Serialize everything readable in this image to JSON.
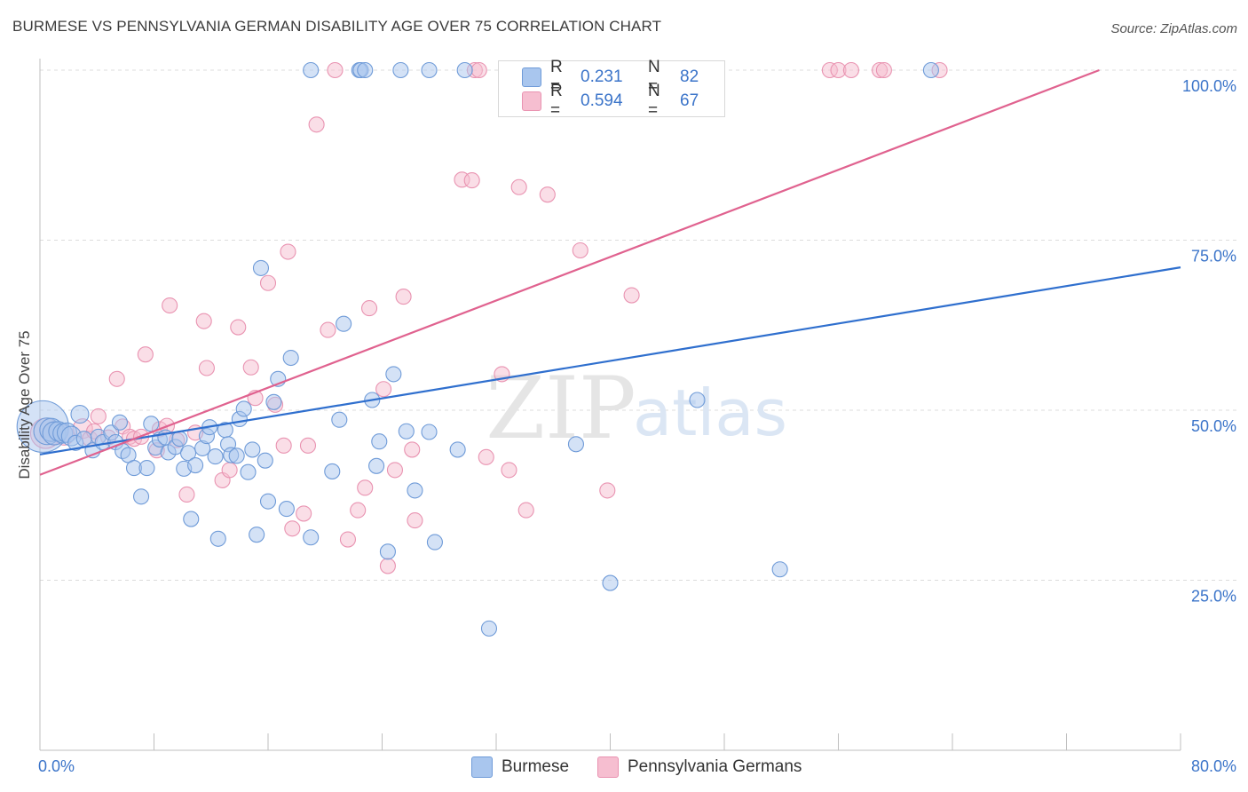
{
  "header": {
    "title": "BURMESE VS PENNSYLVANIA GERMAN DISABILITY AGE OVER 75 CORRELATION CHART",
    "source": "Source: ZipAtlas.com"
  },
  "watermark": {
    "zip": "ZIP",
    "atlas": "atlas"
  },
  "legend": {
    "r_label": "R =",
    "n_label": "N =",
    "series": [
      {
        "name": "Burmese",
        "r": "0.231",
        "n": "82"
      },
      {
        "name": "Pennsylvania Germans",
        "r": "0.594",
        "n": "67"
      }
    ]
  },
  "colors": {
    "burmese_fill": "#a9c6ee",
    "burmese_stroke": "#6f9bd8",
    "burmese_line": "#2f6fce",
    "pa_fill": "#f6bed0",
    "pa_stroke": "#e993b1",
    "pa_line": "#e0628f",
    "tick_label": "#3b74c9",
    "grid": "#dcdcdc"
  },
  "chart_data": {
    "type": "scatter",
    "title": "BURMESE VS PENNSYLVANIA GERMAN DISABILITY AGE OVER 75 CORRELATION CHART",
    "xlabel": "",
    "ylabel": "Disability Age Over 75",
    "xlim": [
      0,
      80
    ],
    "ylim": [
      0,
      100
    ],
    "x_tick_labels": [
      {
        "value": 0,
        "label": "0.0%"
      },
      {
        "value": 80,
        "label": "80.0%"
      }
    ],
    "y_tick_labels": [
      {
        "value": 25,
        "label": "25.0%"
      },
      {
        "value": 50,
        "label": "50.0%"
      },
      {
        "value": 75,
        "label": "75.0%"
      },
      {
        "value": 100,
        "label": "100.0%"
      }
    ],
    "series": [
      {
        "name": "Burmese",
        "r": 0.231,
        "n": 82,
        "trend": {
          "x": [
            0,
            80
          ],
          "y": [
            43.5,
            71.0
          ]
        },
        "points": [
          [
            0.2,
            47.6,
            30
          ],
          [
            0.5,
            46.9,
            16
          ],
          [
            0.8,
            47.1,
            14
          ],
          [
            1.0,
            46.6,
            14
          ],
          [
            1.3,
            46.9,
            12
          ],
          [
            1.6,
            46.6,
            12
          ],
          [
            1.9,
            46.7,
            12
          ],
          [
            2.2,
            46.2,
            12
          ],
          [
            2.5,
            45.2,
            10
          ],
          [
            2.8,
            49.4,
            11
          ],
          [
            3.1,
            45.8,
            10
          ],
          [
            3.7,
            44.1,
            10
          ],
          [
            4.1,
            46.1,
            10
          ],
          [
            4.4,
            45.3,
            10
          ],
          [
            5.0,
            46.7,
            10
          ],
          [
            5.3,
            45.3,
            10
          ],
          [
            5.6,
            48.2,
            10
          ],
          [
            5.8,
            44.0,
            10
          ],
          [
            6.2,
            43.4,
            10
          ],
          [
            6.6,
            41.5,
            10
          ],
          [
            7.1,
            37.3,
            10
          ],
          [
            7.5,
            41.5,
            10
          ],
          [
            7.8,
            48.0,
            10
          ],
          [
            8.1,
            44.5,
            10
          ],
          [
            8.4,
            45.7,
            10
          ],
          [
            8.8,
            46.0,
            10
          ],
          [
            9.0,
            43.8,
            10
          ],
          [
            9.5,
            44.6,
            10
          ],
          [
            9.8,
            45.8,
            10
          ],
          [
            10.1,
            41.4,
            10
          ],
          [
            10.4,
            43.7,
            10
          ],
          [
            10.6,
            34.0,
            10
          ],
          [
            10.9,
            41.9,
            10
          ],
          [
            11.4,
            44.4,
            10
          ],
          [
            11.7,
            46.2,
            10
          ],
          [
            11.9,
            47.5,
            10
          ],
          [
            12.3,
            43.2,
            10
          ],
          [
            12.5,
            31.1,
            10
          ],
          [
            13.0,
            47.1,
            10
          ],
          [
            13.2,
            45.0,
            10
          ],
          [
            13.4,
            43.4,
            10
          ],
          [
            13.8,
            43.3,
            10
          ],
          [
            14.0,
            48.7,
            10
          ],
          [
            14.3,
            50.2,
            10
          ],
          [
            14.6,
            40.9,
            10
          ],
          [
            14.9,
            44.2,
            10
          ],
          [
            15.2,
            31.7,
            10
          ],
          [
            15.5,
            70.9,
            10
          ],
          [
            15.8,
            42.6,
            10
          ],
          [
            16.0,
            36.6,
            10
          ],
          [
            16.4,
            51.2,
            10
          ],
          [
            16.7,
            54.6,
            10
          ],
          [
            17.3,
            35.5,
            10
          ],
          [
            17.6,
            57.7,
            10
          ],
          [
            19.0,
            31.3,
            10
          ],
          [
            19.0,
            100,
            10
          ],
          [
            20.5,
            41.0,
            10
          ],
          [
            21.0,
            48.6,
            10
          ],
          [
            21.3,
            62.7,
            10
          ],
          [
            22.4,
            100,
            10
          ],
          [
            22.5,
            100,
            10
          ],
          [
            22.8,
            100,
            10
          ],
          [
            23.3,
            51.5,
            10
          ],
          [
            23.6,
            41.8,
            10
          ],
          [
            23.8,
            45.4,
            10
          ],
          [
            24.4,
            29.2,
            10
          ],
          [
            24.8,
            55.3,
            10
          ],
          [
            25.3,
            100,
            10
          ],
          [
            25.7,
            46.9,
            10
          ],
          [
            26.3,
            38.2,
            10
          ],
          [
            27.3,
            46.8,
            10
          ],
          [
            27.3,
            100,
            10
          ],
          [
            27.7,
            30.6,
            10
          ],
          [
            29.3,
            44.2,
            10
          ],
          [
            29.8,
            100,
            10
          ],
          [
            31.5,
            17.9,
            10
          ],
          [
            37.6,
            45.0,
            10
          ],
          [
            40.0,
            24.6,
            10
          ],
          [
            46.1,
            51.5,
            10
          ],
          [
            51.9,
            26.6,
            10
          ],
          [
            62.5,
            100,
            10
          ]
        ]
      },
      {
        "name": "Pennsylvania Germans",
        "r": 0.594,
        "n": 67,
        "trend": {
          "x": [
            0,
            74.3
          ],
          "y": [
            40.5,
            100
          ]
        },
        "points": [
          [
            0.4,
            46.6,
            18
          ],
          [
            1.0,
            46.6,
            14
          ],
          [
            1.7,
            46.3,
            12
          ],
          [
            3.0,
            47.3,
            12
          ],
          [
            3.5,
            45.8,
            10
          ],
          [
            3.8,
            46.9,
            10
          ],
          [
            4.1,
            49.1,
            10
          ],
          [
            4.8,
            46.0,
            10
          ],
          [
            5.4,
            54.6,
            10
          ],
          [
            5.8,
            47.6,
            10
          ],
          [
            6.3,
            46.1,
            10
          ],
          [
            6.6,
            45.8,
            10
          ],
          [
            7.1,
            46.1,
            10
          ],
          [
            7.4,
            58.2,
            10
          ],
          [
            8.2,
            44.1,
            10
          ],
          [
            8.4,
            47.2,
            10
          ],
          [
            8.9,
            47.7,
            10
          ],
          [
            9.1,
            65.4,
            10
          ],
          [
            9.6,
            45.6,
            10
          ],
          [
            10.3,
            37.6,
            10
          ],
          [
            10.9,
            46.7,
            10
          ],
          [
            11.5,
            63.1,
            10
          ],
          [
            11.7,
            56.2,
            10
          ],
          [
            12.8,
            39.7,
            10
          ],
          [
            13.3,
            41.2,
            10
          ],
          [
            13.9,
            62.2,
            10
          ],
          [
            14.8,
            56.3,
            10
          ],
          [
            15.1,
            51.8,
            10
          ],
          [
            16.0,
            68.7,
            10
          ],
          [
            16.5,
            50.8,
            10
          ],
          [
            17.1,
            44.8,
            10
          ],
          [
            17.4,
            73.3,
            10
          ],
          [
            17.7,
            32.6,
            10
          ],
          [
            18.5,
            34.8,
            10
          ],
          [
            18.8,
            44.8,
            10
          ],
          [
            19.4,
            92.0,
            10
          ],
          [
            20.2,
            61.8,
            10
          ],
          [
            20.7,
            100,
            10
          ],
          [
            21.6,
            31.0,
            10
          ],
          [
            22.3,
            35.3,
            10
          ],
          [
            22.8,
            38.6,
            10
          ],
          [
            23.1,
            65.0,
            10
          ],
          [
            24.1,
            53.1,
            10
          ],
          [
            24.4,
            27.1,
            10
          ],
          [
            24.9,
            41.2,
            10
          ],
          [
            25.5,
            66.7,
            10
          ],
          [
            26.1,
            44.2,
            10
          ],
          [
            26.3,
            33.8,
            10
          ],
          [
            29.6,
            83.9,
            10
          ],
          [
            30.3,
            83.8,
            10
          ],
          [
            30.5,
            100,
            10
          ],
          [
            30.8,
            100,
            10
          ],
          [
            31.3,
            43.1,
            10
          ],
          [
            32.4,
            55.3,
            10
          ],
          [
            32.9,
            41.2,
            10
          ],
          [
            33.6,
            82.8,
            10
          ],
          [
            34.1,
            35.3,
            10
          ],
          [
            35.6,
            81.7,
            10
          ],
          [
            37.9,
            73.5,
            10
          ],
          [
            39.8,
            38.2,
            10
          ],
          [
            41.5,
            66.9,
            10
          ],
          [
            55.4,
            100,
            10
          ],
          [
            56.0,
            100,
            10
          ],
          [
            56.9,
            100,
            10
          ],
          [
            58.9,
            100,
            10
          ],
          [
            59.2,
            100,
            10
          ],
          [
            63.1,
            100,
            10
          ]
        ]
      }
    ]
  }
}
